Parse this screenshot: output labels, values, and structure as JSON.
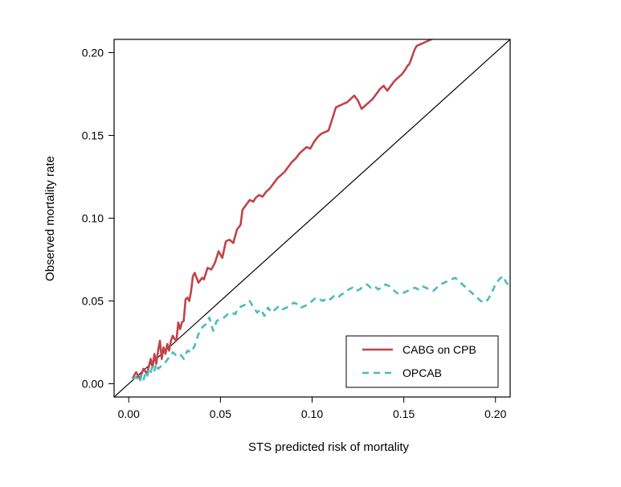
{
  "chart_data": {
    "type": "line",
    "title": "",
    "xlabel": "STS predicted risk of mortality",
    "ylabel": "Observed mortality rate",
    "xlim": [
      -0.008,
      0.208
    ],
    "ylim": [
      -0.008,
      0.208
    ],
    "xticks": [
      0.0,
      0.05,
      0.1,
      0.15,
      0.2
    ],
    "xtick_labels": [
      "0.00",
      "0.05",
      "0.10",
      "0.15",
      "0.20"
    ],
    "yticks": [
      0.0,
      0.05,
      0.1,
      0.15,
      0.2
    ],
    "ytick_labels": [
      "0.00",
      "0.05",
      "0.10",
      "0.15",
      "0.20"
    ],
    "grid": false,
    "legend_position": "bottom-right",
    "reference_line": {
      "x": [
        -0.008,
        0.208
      ],
      "y": [
        -0.008,
        0.208
      ],
      "color": "#000000"
    },
    "series": [
      {
        "name": "CABG on CPB",
        "color": "#c0444a",
        "style": "solid",
        "x": [
          0.002,
          0.004,
          0.006,
          0.008,
          0.01,
          0.012,
          0.013,
          0.014,
          0.015,
          0.016,
          0.017,
          0.018,
          0.019,
          0.02,
          0.021,
          0.022,
          0.023,
          0.024,
          0.025,
          0.026,
          0.027,
          0.028,
          0.029,
          0.03,
          0.031,
          0.032,
          0.033,
          0.034,
          0.035,
          0.036,
          0.038,
          0.04,
          0.041,
          0.043,
          0.045,
          0.047,
          0.049,
          0.051,
          0.053,
          0.055,
          0.057,
          0.059,
          0.061,
          0.062,
          0.064,
          0.066,
          0.068,
          0.069,
          0.071,
          0.073,
          0.075,
          0.077,
          0.079,
          0.081,
          0.083,
          0.085,
          0.087,
          0.089,
          0.091,
          0.093,
          0.095,
          0.097,
          0.099,
          0.101,
          0.103,
          0.105,
          0.107,
          0.109,
          0.111,
          0.113,
          0.115,
          0.117,
          0.119,
          0.121,
          0.123,
          0.125,
          0.127,
          0.129,
          0.131,
          0.133,
          0.135,
          0.137,
          0.139,
          0.141,
          0.143,
          0.145,
          0.147,
          0.149,
          0.151,
          0.152,
          0.153,
          0.154,
          0.155,
          0.156,
          0.157,
          0.159,
          0.161,
          0.163,
          0.165,
          0.167,
          0.169,
          0.171,
          0.173,
          0.175,
          0.177,
          0.179,
          0.18,
          0.182,
          0.184,
          0.186,
          0.188,
          0.19,
          0.191
        ],
        "y": [
          0.003,
          0.007,
          0.003,
          0.009,
          0.006,
          0.015,
          0.01,
          0.018,
          0.012,
          0.02,
          0.026,
          0.015,
          0.022,
          0.018,
          0.024,
          0.02,
          0.026,
          0.029,
          0.027,
          0.026,
          0.037,
          0.033,
          0.037,
          0.038,
          0.051,
          0.052,
          0.05,
          0.056,
          0.065,
          0.067,
          0.061,
          0.064,
          0.063,
          0.07,
          0.069,
          0.073,
          0.08,
          0.076,
          0.086,
          0.087,
          0.085,
          0.093,
          0.096,
          0.105,
          0.108,
          0.111,
          0.11,
          0.112,
          0.114,
          0.113,
          0.116,
          0.118,
          0.121,
          0.124,
          0.126,
          0.128,
          0.131,
          0.134,
          0.136,
          0.139,
          0.141,
          0.143,
          0.142,
          0.146,
          0.149,
          0.151,
          0.152,
          0.153,
          0.16,
          0.167,
          0.168,
          0.169,
          0.17,
          0.172,
          0.174,
          0.171,
          0.166,
          0.168,
          0.17,
          0.172,
          0.175,
          0.178,
          0.18,
          0.177,
          0.18,
          0.183,
          0.185,
          0.187,
          0.19,
          0.192,
          0.193,
          0.196,
          0.199,
          0.202,
          0.204,
          0.205,
          0.206,
          0.207,
          0.208,
          0.209,
          0.21,
          0.211,
          0.212,
          0.213,
          0.214,
          0.215,
          0.216,
          0.217,
          0.218,
          0.219,
          0.22,
          0.221,
          0.222
        ]
      },
      {
        "name": "OPCAB",
        "color": "#4bbcbc",
        "style": "dashed",
        "x": [
          0.002,
          0.004,
          0.006,
          0.007,
          0.008,
          0.009,
          0.01,
          0.011,
          0.012,
          0.013,
          0.014,
          0.015,
          0.016,
          0.018,
          0.02,
          0.022,
          0.024,
          0.026,
          0.028,
          0.03,
          0.032,
          0.034,
          0.036,
          0.038,
          0.04,
          0.042,
          0.044,
          0.046,
          0.048,
          0.05,
          0.052,
          0.054,
          0.056,
          0.058,
          0.06,
          0.062,
          0.064,
          0.066,
          0.068,
          0.07,
          0.072,
          0.074,
          0.076,
          0.078,
          0.08,
          0.082,
          0.084,
          0.086,
          0.088,
          0.09,
          0.092,
          0.094,
          0.096,
          0.098,
          0.1,
          0.102,
          0.104,
          0.106,
          0.108,
          0.11,
          0.112,
          0.114,
          0.116,
          0.118,
          0.12,
          0.122,
          0.124,
          0.126,
          0.128,
          0.13,
          0.132,
          0.134,
          0.136,
          0.138,
          0.14,
          0.142,
          0.144,
          0.146,
          0.148,
          0.15,
          0.152,
          0.154,
          0.156,
          0.158,
          0.16,
          0.162,
          0.164,
          0.166,
          0.168,
          0.17,
          0.172,
          0.174,
          0.176,
          0.178,
          0.18,
          0.182,
          0.184,
          0.186,
          0.188,
          0.19,
          0.192,
          0.194,
          0.196,
          0.198,
          0.2,
          0.202,
          0.204,
          0.206,
          0.208
        ],
        "y": [
          0.003,
          0.004,
          0.001,
          0.005,
          0.002,
          0.006,
          0.004,
          0.009,
          0.007,
          0.011,
          0.008,
          0.012,
          0.009,
          0.011,
          0.013,
          0.016,
          0.019,
          0.017,
          0.018,
          0.015,
          0.02,
          0.019,
          0.023,
          0.03,
          0.034,
          0.036,
          0.04,
          0.032,
          0.038,
          0.039,
          0.04,
          0.042,
          0.043,
          0.042,
          0.046,
          0.047,
          0.048,
          0.05,
          0.046,
          0.043,
          0.045,
          0.041,
          0.046,
          0.043,
          0.045,
          0.047,
          0.045,
          0.046,
          0.047,
          0.049,
          0.048,
          0.046,
          0.047,
          0.048,
          0.05,
          0.052,
          0.051,
          0.05,
          0.052,
          0.051,
          0.053,
          0.052,
          0.054,
          0.055,
          0.057,
          0.058,
          0.056,
          0.057,
          0.059,
          0.06,
          0.058,
          0.059,
          0.057,
          0.058,
          0.06,
          0.059,
          0.057,
          0.055,
          0.054,
          0.055,
          0.056,
          0.057,
          0.058,
          0.057,
          0.059,
          0.058,
          0.057,
          0.056,
          0.058,
          0.06,
          0.061,
          0.062,
          0.063,
          0.064,
          0.062,
          0.06,
          0.058,
          0.056,
          0.054,
          0.052,
          0.05,
          0.049,
          0.051,
          0.055,
          0.06,
          0.063,
          0.065,
          0.061,
          0.059
        ]
      }
    ]
  }
}
